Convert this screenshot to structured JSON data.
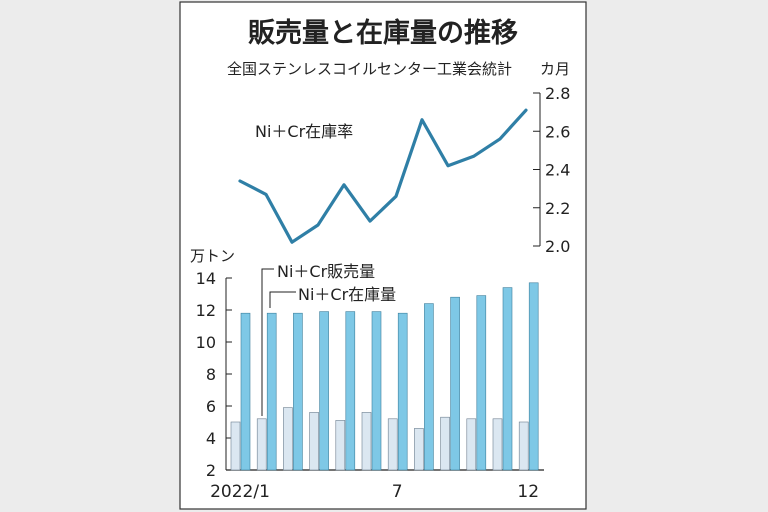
{
  "chart_data": {
    "title": "販売量と在庫量の推移",
    "source": "全国ステンレスコイルセンター工業会統計",
    "line_chart": {
      "type": "line",
      "unit": "カ月",
      "ylim": [
        2.0,
        2.8
      ],
      "yticks": [
        "2.8",
        "2.6",
        "2.4",
        "2.2",
        "2.0"
      ],
      "series": [
        {
          "name": "Ni＋Cr在庫率",
          "color": "#2f7fa6",
          "values": [
            2.34,
            2.27,
            2.02,
            2.11,
            2.32,
            2.13,
            2.26,
            2.66,
            2.42,
            2.47,
            2.56,
            2.71
          ]
        }
      ]
    },
    "bar_chart": {
      "type": "bar",
      "unit": "万トン",
      "ylim": [
        2,
        14
      ],
      "yticks": [
        "14",
        "12",
        "10",
        "8",
        "6",
        "4",
        "2"
      ],
      "x_labels": [
        "2022/1",
        "7",
        "12"
      ],
      "series": [
        {
          "name": "Ni＋Cr販売量",
          "color": "#dbe7f1",
          "values": [
            5.0,
            5.2,
            5.9,
            5.6,
            5.1,
            5.6,
            5.2,
            4.6,
            5.3,
            5.2,
            5.2,
            5.0
          ]
        },
        {
          "name": "Ni＋Cr在庫量",
          "color": "#7ec8e6",
          "values": [
            11.8,
            11.8,
            11.8,
            11.9,
            11.9,
            11.9,
            11.8,
            12.4,
            12.8,
            12.9,
            13.4,
            13.7
          ]
        }
      ]
    }
  }
}
